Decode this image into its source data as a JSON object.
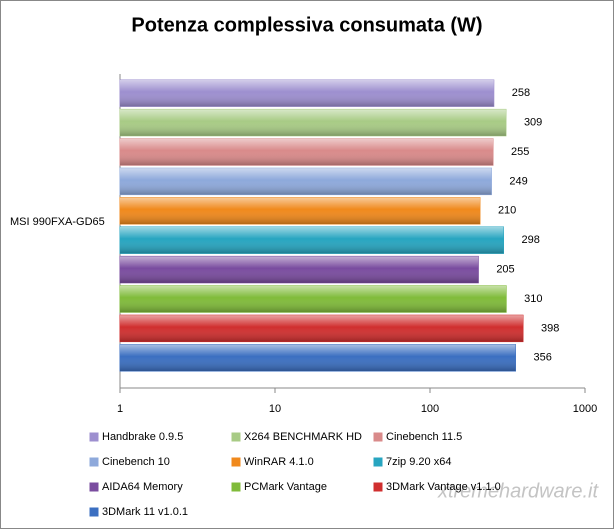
{
  "chart_data": {
    "type": "bar",
    "orientation": "horizontal",
    "title": "Potenza complessiva consumata (W)",
    "categories": [
      "MSI 990FXA-GD65"
    ],
    "series": [
      {
        "name": "Handbrake 0.9.5",
        "color": "#9d8fcf",
        "values": [
          258
        ]
      },
      {
        "name": "X264 BENCHMARK HD",
        "color": "#a8cb85",
        "values": [
          309
        ]
      },
      {
        "name": "Cinebench 11.5",
        "color": "#d98a8a",
        "values": [
          255
        ]
      },
      {
        "name": "Cinebench 10",
        "color": "#8ea9db",
        "values": [
          249
        ]
      },
      {
        "name": "WinRAR 4.1.0",
        "color": "#f0891c",
        "values": [
          210
        ]
      },
      {
        "name": "7zip 9.20 x64",
        "color": "#27a5c0",
        "values": [
          298
        ]
      },
      {
        "name": "AIDA64 Memory",
        "color": "#7a4c9f",
        "values": [
          205
        ]
      },
      {
        "name": "PCMark Vantage",
        "color": "#80bb3a",
        "values": [
          310
        ]
      },
      {
        "name": "3DMark Vantage v1.1.0",
        "color": "#d02f2f",
        "values": [
          398
        ]
      },
      {
        "name": "3DMark 11 v1.0.1",
        "color": "#3b6fc1",
        "values": [
          356
        ]
      }
    ],
    "xscale": "log",
    "xlim": [
      1,
      1000
    ],
    "xticks": [
      1,
      10,
      100,
      1000
    ],
    "grid": false,
    "watermark": "xtremehardware.it"
  }
}
